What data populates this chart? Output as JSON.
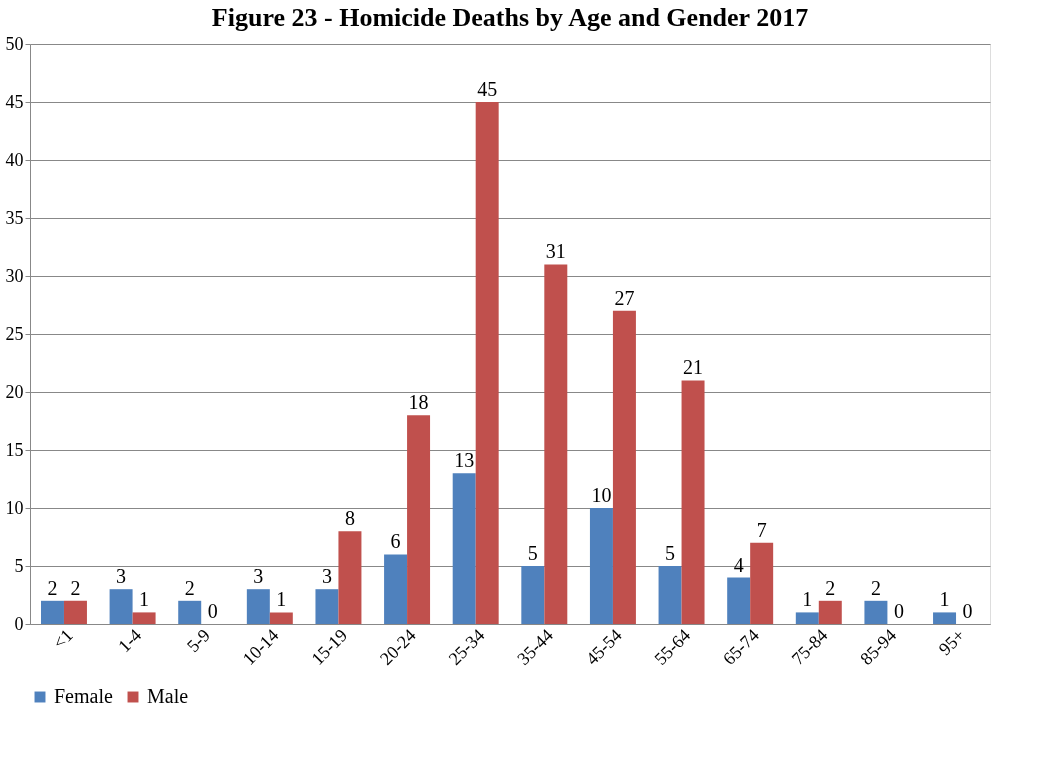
{
  "chart_data": {
    "type": "bar",
    "title": "Figure 23 - Homicide Deaths by Age and Gender 2017",
    "categories": [
      "<1",
      "1-4",
      "5-9",
      "10-14",
      "15-19",
      "20-24",
      "25-34",
      "35-44",
      "45-54",
      "55-64",
      "65-74",
      "75-84",
      "85-94",
      "95+"
    ],
    "series": [
      {
        "name": "Female",
        "color": "#4f81bd",
        "values": [
          2,
          3,
          2,
          3,
          3,
          6,
          13,
          5,
          10,
          5,
          4,
          1,
          2,
          1
        ]
      },
      {
        "name": "Male",
        "color": "#c0504d",
        "values": [
          2,
          1,
          0,
          1,
          8,
          18,
          45,
          31,
          27,
          21,
          7,
          2,
          0,
          0
        ]
      }
    ],
    "ylim": [
      0,
      50
    ],
    "yticks": [
      0,
      5,
      10,
      15,
      20,
      25,
      30,
      35,
      40,
      45,
      50
    ],
    "grid": "y",
    "legend": "bottom",
    "data_labels": true
  }
}
